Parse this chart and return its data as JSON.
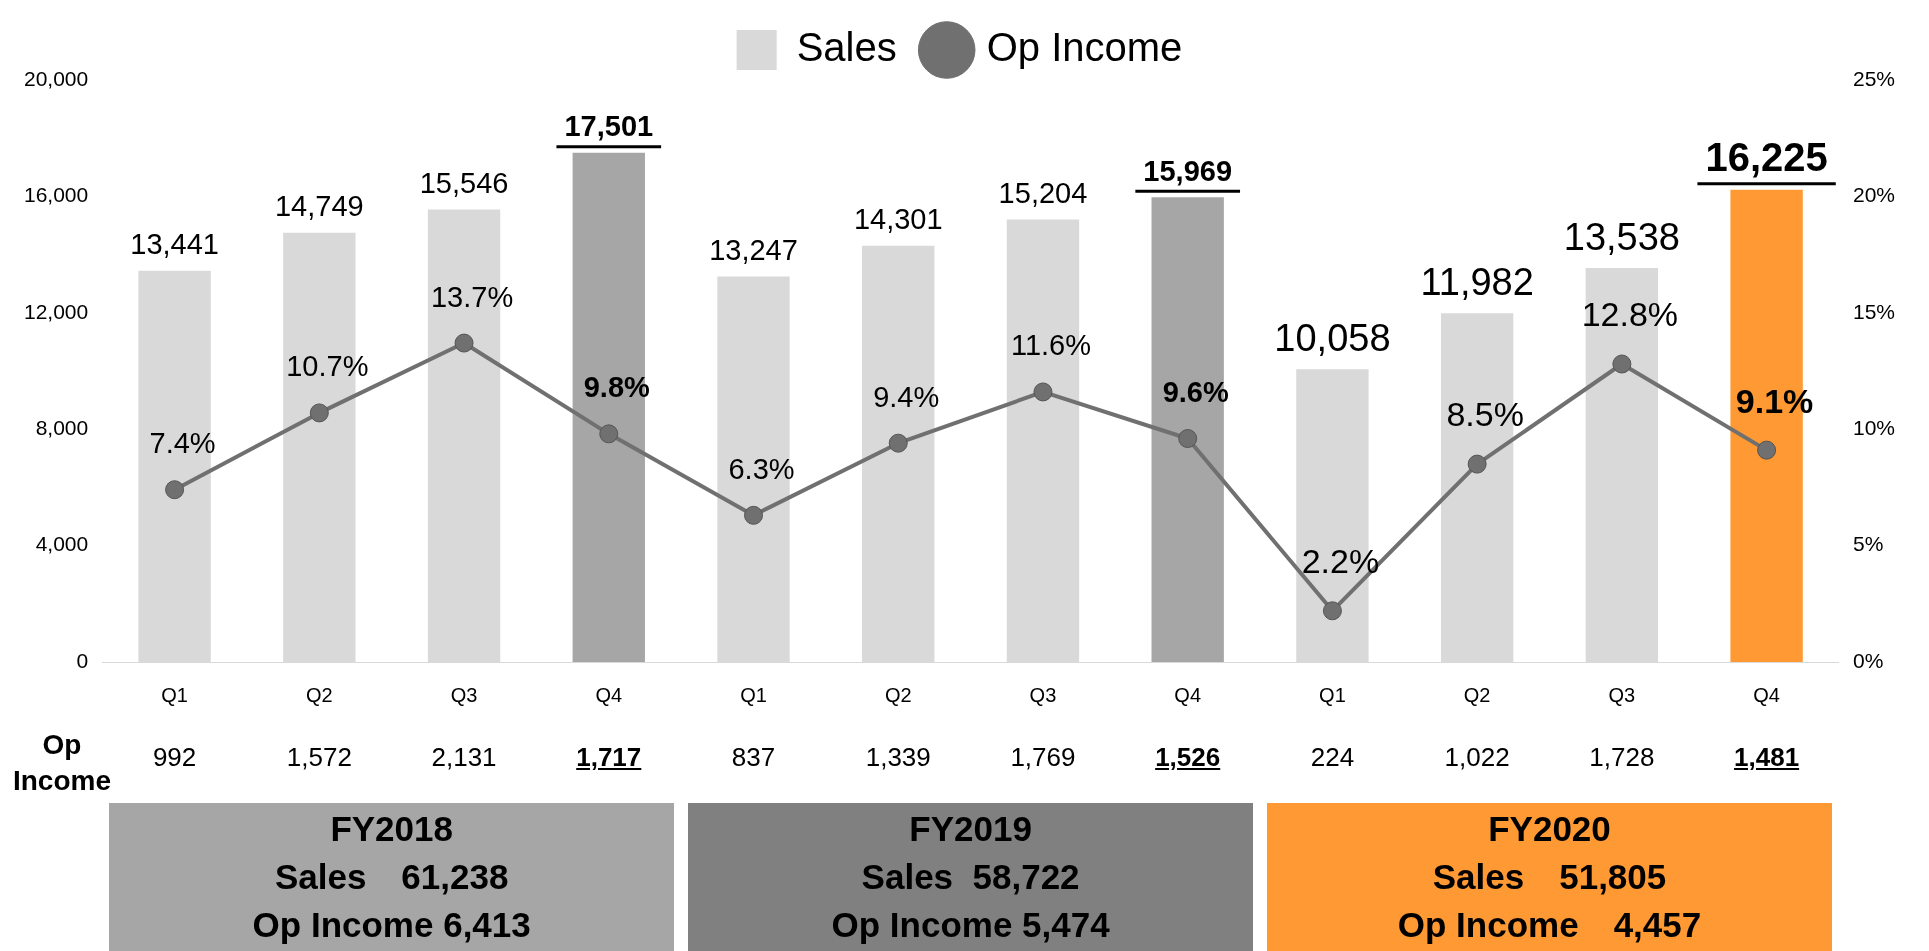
{
  "chart_data": {
    "type": "bar",
    "categories": [
      "Q1",
      "Q2",
      "Q3",
      "Q4",
      "Q1",
      "Q2",
      "Q3",
      "Q4",
      "Q1",
      "Q2",
      "Q3",
      "Q4"
    ],
    "series": [
      {
        "name": "Sales",
        "color": "#d9d9d9",
        "colors": [
          "#d9d9d9",
          "#d9d9d9",
          "#d9d9d9",
          "#a6a6a6",
          "#d9d9d9",
          "#d9d9d9",
          "#d9d9d9",
          "#a6a6a6",
          "#d9d9d9",
          "#d9d9d9",
          "#d9d9d9",
          "#ff9933"
        ],
        "values": [
          13441,
          14749,
          15546,
          17501,
          13247,
          14301,
          15204,
          15969,
          10058,
          11982,
          13538,
          16225
        ],
        "value_labels": [
          "13,441",
          "14,749",
          "15,546",
          "17,501",
          "13,247",
          "14,301",
          "15,204",
          "15,969",
          "10,058",
          "11,982",
          "13,538",
          "16,225"
        ]
      },
      {
        "name": "Op Income",
        "type": "line",
        "axis": "y2",
        "color": "#707070",
        "values": [
          7.4,
          10.7,
          13.7,
          9.8,
          6.3,
          9.4,
          11.6,
          9.6,
          2.2,
          8.5,
          12.8,
          9.1
        ],
        "value_labels": [
          "7.4%",
          "10.7%",
          "13.7%",
          "9.8%",
          "6.3%",
          "9.4%",
          "11.6%",
          "9.6%",
          "2.2%",
          "8.5%",
          "12.8%",
          "9.1%"
        ]
      }
    ],
    "ylim": [
      0,
      20000
    ],
    "yticks": [
      {
        "value": 0,
        "label": "0"
      },
      {
        "value": 4000,
        "label": "4,000"
      },
      {
        "value": 8000,
        "label": "8,000"
      },
      {
        "value": 12000,
        "label": "12,000"
      },
      {
        "value": 16000,
        "label": "16,000"
      },
      {
        "value": 20000,
        "label": "20,000"
      }
    ],
    "y2lim": [
      0,
      25
    ],
    "y2ticks": [
      {
        "value": 0,
        "label": "0%"
      },
      {
        "value": 5,
        "label": "5%"
      },
      {
        "value": 10,
        "label": "10%"
      },
      {
        "value": 15,
        "label": "15%"
      },
      {
        "value": 20,
        "label": "20%"
      },
      {
        "value": 25,
        "label": "25%"
      }
    ],
    "legend": "top",
    "grid": false,
    "marker": "circle",
    "annotations": [
      "Op Income",
      "992",
      "1,572",
      "2,131",
      "1,717",
      "837",
      "1,339",
      "1,769",
      "1,526",
      "224",
      "1,022",
      "1,728",
      "1,481",
      "FY2018",
      "Sales　61,238",
      "Op Income 6,413",
      "FY2019",
      "Sales  58,722",
      "Op Income 5,474",
      "FY2020",
      "Sales　51,805",
      "Op Income　4,457"
    ]
  }
}
